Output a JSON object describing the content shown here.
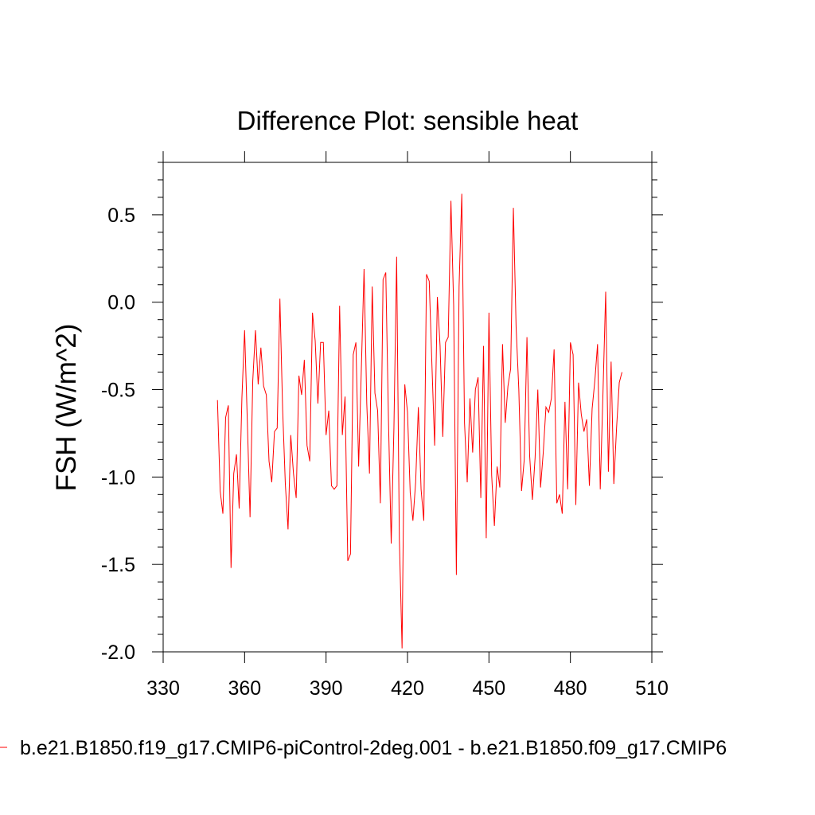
{
  "chart_data": {
    "type": "line",
    "title": "Difference Plot: sensible heat",
    "ylabel": "FSH  (W/m^2)",
    "xlabel": "",
    "xlim": [
      330,
      510
    ],
    "ylim": [
      -2.0,
      0.8
    ],
    "xticks": [
      330,
      360,
      390,
      420,
      450,
      480,
      510
    ],
    "xtick_labels": [
      "330",
      "360",
      "390",
      "420",
      "450",
      "480",
      "510"
    ],
    "yticks": [
      0.5,
      0.0,
      -0.5,
      -1.0,
      -1.5,
      -2.0
    ],
    "ytick_labels": [
      "0.5",
      "0.0",
      "-0.5",
      "-1.0",
      "-1.5",
      "-2.0"
    ],
    "grid": false,
    "legend_position": "bottom",
    "series": [
      {
        "name": "b.e21.B1850.f19_g17.CMIP6-piControl-2deg.001 - b.e21.B1850.f09_g17.CMIP6",
        "color": "#ff0000",
        "x": [
          350,
          351,
          352,
          353,
          354,
          355,
          356,
          357,
          358,
          359,
          360,
          361,
          362,
          363,
          364,
          365,
          366,
          367,
          368,
          369,
          370,
          371,
          372,
          373,
          374,
          375,
          376,
          377,
          378,
          379,
          380,
          381,
          382,
          383,
          384,
          385,
          386,
          387,
          388,
          389,
          390,
          391,
          392,
          393,
          394,
          395,
          396,
          397,
          398,
          399,
          400,
          401,
          402,
          403,
          404,
          405,
          406,
          407,
          408,
          409,
          410,
          411,
          412,
          413,
          414,
          415,
          416,
          417,
          418,
          419,
          420,
          421,
          422,
          423,
          424,
          425,
          426,
          427,
          428,
          429,
          430,
          431,
          432,
          433,
          434,
          435,
          436,
          437,
          438,
          439,
          440,
          441,
          442,
          443,
          444,
          445,
          446,
          447,
          448,
          449,
          450,
          451,
          452,
          453,
          454,
          455,
          456,
          457,
          458,
          459,
          460,
          461,
          462,
          463,
          464,
          465,
          466,
          467,
          468,
          469,
          470,
          471,
          472,
          473,
          474,
          475,
          476,
          477,
          478,
          479,
          480,
          481,
          482,
          483,
          484,
          485,
          486,
          487,
          488,
          489,
          490,
          491,
          492,
          493,
          494,
          495,
          496,
          497,
          498,
          499
        ],
        "values": [
          -0.56,
          -1.08,
          -1.21,
          -0.66,
          -0.59,
          -1.52,
          -0.98,
          -0.87,
          -1.18,
          -0.55,
          -0.16,
          -0.68,
          -1.23,
          -0.45,
          -0.16,
          -0.47,
          -0.26,
          -0.48,
          -0.53,
          -0.91,
          -1.03,
          -0.74,
          -0.72,
          0.02,
          -0.61,
          -1.04,
          -1.3,
          -0.76,
          -0.98,
          -1.12,
          -0.42,
          -0.53,
          -0.33,
          -0.82,
          -0.91,
          -0.06,
          -0.22,
          -0.58,
          -0.23,
          -0.23,
          -0.76,
          -0.62,
          -1.05,
          -1.07,
          -1.05,
          -0.02,
          -0.76,
          -0.54,
          -1.48,
          -1.44,
          -0.3,
          -0.23,
          -0.94,
          -0.38,
          0.19,
          -0.58,
          -0.98,
          0.09,
          -0.52,
          -0.62,
          -1.15,
          0.13,
          0.17,
          -0.68,
          -1.38,
          -0.72,
          0.26,
          -1.36,
          -1.98,
          -0.47,
          -0.63,
          -1.09,
          -1.25,
          -1.03,
          -0.6,
          -1.07,
          -1.25,
          0.16,
          0.12,
          -0.36,
          -0.82,
          0.03,
          -0.25,
          -0.77,
          -0.23,
          -0.2,
          0.58,
          -0.02,
          -1.56,
          0.09,
          0.62,
          -0.69,
          -1.03,
          -0.55,
          -0.86,
          -0.5,
          -0.43,
          -1.12,
          -0.25,
          -1.35,
          -0.06,
          -0.99,
          -1.28,
          -0.94,
          -1.06,
          -0.24,
          -0.69,
          -0.48,
          -0.38,
          0.54,
          -0.14,
          -0.5,
          -1.08,
          -0.9,
          -0.2,
          -0.88,
          -1.13,
          -0.89,
          -0.5,
          -1.06,
          -0.86,
          -0.6,
          -0.63,
          -0.55,
          -0.27,
          -1.15,
          -1.1,
          -1.21,
          -0.57,
          -1.07,
          -0.23,
          -0.3,
          -1.16,
          -0.46,
          -0.64,
          -0.74,
          -0.67,
          -1.05,
          -0.61,
          -0.45,
          -0.24,
          -1.07,
          -0.52,
          0.06,
          -0.97,
          -0.34,
          -1.04,
          -0.72,
          -0.46,
          -0.4
        ]
      }
    ]
  }
}
